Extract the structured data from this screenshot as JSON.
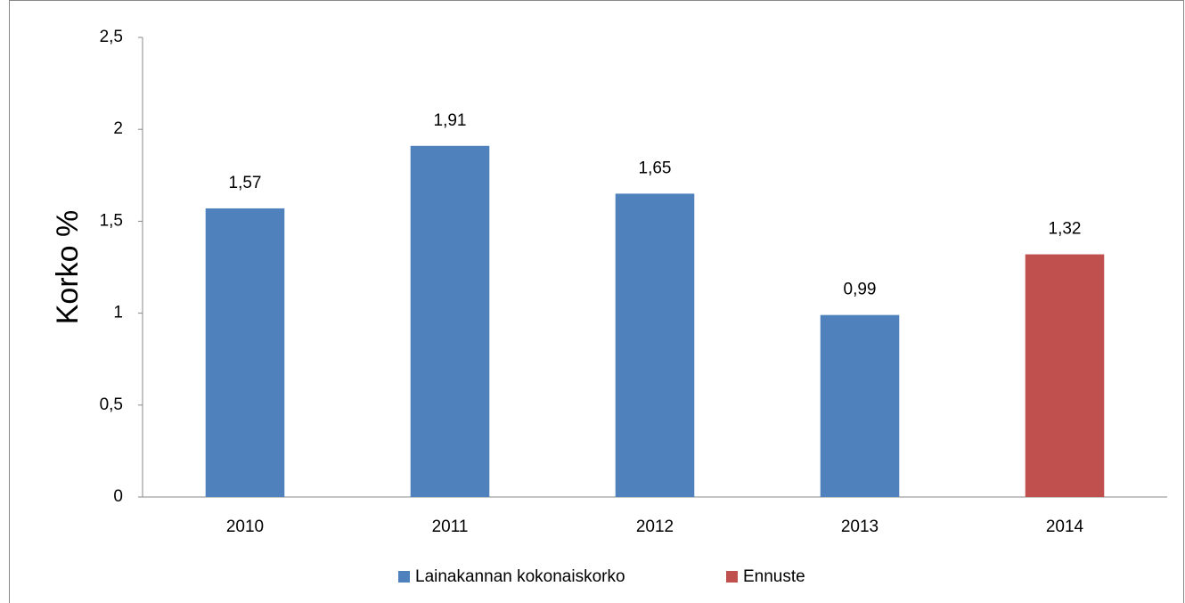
{
  "chart_data": {
    "type": "bar",
    "y_label": "Korko %",
    "categories": [
      "2010",
      "2011",
      "2012",
      "2013",
      "2014"
    ],
    "series": [
      {
        "name": "Lainakannan kokonaiskorko",
        "color": "#4f81bd",
        "values": [
          1.57,
          1.91,
          1.65,
          0.99,
          null
        ],
        "value_labels": [
          "1,57",
          "1,91",
          "1,65",
          "0,99",
          null
        ]
      },
      {
        "name": "Ennuste",
        "color": "#c0504d",
        "values": [
          null,
          null,
          null,
          null,
          1.32
        ],
        "value_labels": [
          null,
          null,
          null,
          null,
          "1,32"
        ]
      }
    ],
    "ylim": [
      0,
      2.5
    ],
    "yticks": [
      0,
      {
        "value": 0.5,
        "label": "0,5"
      },
      1,
      {
        "value": 1.5,
        "label": "1,5"
      },
      2,
      {
        "value": 2.5,
        "label": "2,5"
      }
    ],
    "legend": "bottom"
  }
}
